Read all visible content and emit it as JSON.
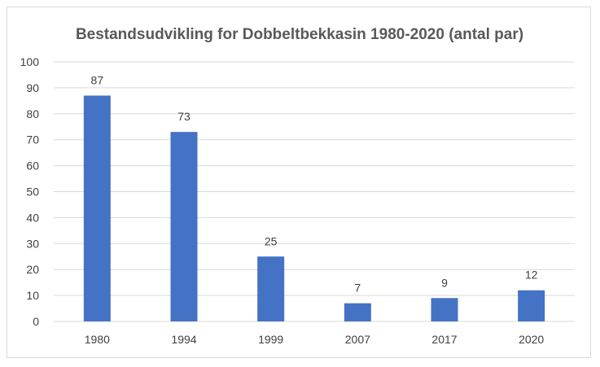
{
  "chart_data": {
    "type": "bar",
    "title": "Bestandsudvikling for Dobbeltbekkasin 1980-2020 (antal par)",
    "categories": [
      "1980",
      "1994",
      "1999",
      "2007",
      "2017",
      "2020"
    ],
    "values": [
      87,
      73,
      25,
      7,
      9,
      12
    ],
    "ylim": [
      0,
      100
    ],
    "yticks": [
      "0",
      "10",
      "20",
      "30",
      "40",
      "50",
      "60",
      "70",
      "80",
      "90",
      "100"
    ],
    "grid": true,
    "legend": "none",
    "bar_color": "#4472c4",
    "grid_color": "#d9d9d9"
  }
}
